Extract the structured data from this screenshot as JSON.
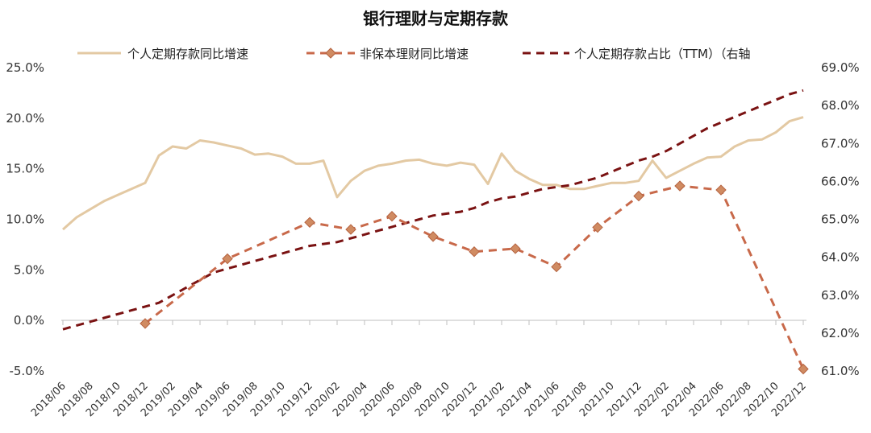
{
  "chart_data": {
    "type": "line",
    "title": "银行理财与定期存款",
    "x_ticks": [
      "2018/06",
      "2018/08",
      "2018/10",
      "2018/12",
      "2019/02",
      "2019/04",
      "2019/06",
      "2019/08",
      "2019/10",
      "2019/12",
      "2020/02",
      "2020/04",
      "2020/06",
      "2020/08",
      "2020/10",
      "2020/12",
      "2021/02",
      "2021/04",
      "2021/06",
      "2021/08",
      "2021/10",
      "2021/12",
      "2022/02",
      "2022/04",
      "2022/06",
      "2022/08",
      "2022/10",
      "2022/12"
    ],
    "y_left": {
      "range": [
        -5,
        25
      ],
      "ticks": [
        "-5.0%",
        "0.0%",
        "5.0%",
        "10.0%",
        "15.0%",
        "20.0%",
        "25.0%"
      ]
    },
    "y_right": {
      "range": [
        61,
        69
      ],
      "ticks": [
        "61.0%",
        "62.0%",
        "63.0%",
        "64.0%",
        "65.0%",
        "66.0%",
        "67.0%",
        "68.0%",
        "69.0%"
      ]
    },
    "grid": false,
    "legend_position": "top",
    "series": [
      {
        "name": "个人定期存款同比增速",
        "axis": "left",
        "style": "solid",
        "color": "#e3c9a3",
        "x": [
          "2018/06",
          "2018/07",
          "2018/08",
          "2018/09",
          "2018/10",
          "2018/11",
          "2018/12",
          "2019/01",
          "2019/02",
          "2019/03",
          "2019/04",
          "2019/05",
          "2019/06",
          "2019/07",
          "2019/08",
          "2019/09",
          "2019/10",
          "2019/11",
          "2019/12",
          "2020/01",
          "2020/02",
          "2020/03",
          "2020/04",
          "2020/05",
          "2020/06",
          "2020/07",
          "2020/08",
          "2020/09",
          "2020/10",
          "2020/11",
          "2020/12",
          "2021/01",
          "2021/02",
          "2021/03",
          "2021/04",
          "2021/05",
          "2021/06",
          "2021/07",
          "2021/08",
          "2021/09",
          "2021/10",
          "2021/11",
          "2021/12",
          "2022/01",
          "2022/02",
          "2022/03",
          "2022/04",
          "2022/05",
          "2022/06",
          "2022/07",
          "2022/08",
          "2022/09",
          "2022/10",
          "2022/11",
          "2022/12"
        ],
        "values": [
          9.0,
          10.2,
          11.0,
          11.8,
          12.4,
          13.0,
          13.6,
          16.3,
          17.2,
          17.0,
          17.8,
          17.6,
          17.3,
          17.0,
          16.4,
          16.5,
          16.2,
          15.5,
          15.5,
          15.8,
          12.2,
          13.8,
          14.8,
          15.3,
          15.5,
          15.8,
          15.9,
          15.5,
          15.3,
          15.6,
          15.4,
          13.5,
          16.5,
          14.8,
          14.0,
          13.4,
          13.4,
          13.0,
          13.0,
          13.3,
          13.6,
          13.6,
          13.8,
          15.8,
          14.1,
          14.8,
          15.5,
          16.1,
          16.2,
          17.2,
          17.8,
          17.9,
          18.6,
          19.7,
          20.1
        ]
      },
      {
        "name": "非保本理财同比增速",
        "axis": "left",
        "style": "dashed-marker",
        "color": "#c8694a",
        "marker_color": "#d08b62",
        "x": [
          "2018/12",
          "2019/06",
          "2019/12",
          "2020/03",
          "2020/06",
          "2020/09",
          "2020/12",
          "2021/03",
          "2021/06",
          "2021/09",
          "2021/12",
          "2022/03",
          "2022/06",
          "2022/12"
        ],
        "values": [
          -0.3,
          6.1,
          9.7,
          9.0,
          10.3,
          8.3,
          6.8,
          7.1,
          5.3,
          9.2,
          12.3,
          13.3,
          12.9,
          -4.8
        ]
      },
      {
        "name": "个人定期存款占比（TTM）（右轴",
        "axis": "right",
        "style": "dashed",
        "color": "#7a1212",
        "x": [
          "2018/06",
          "2018/07",
          "2018/08",
          "2018/09",
          "2018/10",
          "2018/11",
          "2018/12",
          "2019/01",
          "2019/02",
          "2019/03",
          "2019/04",
          "2019/05",
          "2019/06",
          "2019/07",
          "2019/08",
          "2019/09",
          "2019/10",
          "2019/11",
          "2019/12",
          "2020/01",
          "2020/02",
          "2020/03",
          "2020/04",
          "2020/05",
          "2020/06",
          "2020/07",
          "2020/08",
          "2020/09",
          "2020/10",
          "2020/11",
          "2020/12",
          "2021/01",
          "2021/02",
          "2021/03",
          "2021/04",
          "2021/05",
          "2021/06",
          "2021/07",
          "2021/08",
          "2021/09",
          "2021/10",
          "2021/11",
          "2021/12",
          "2022/01",
          "2022/02",
          "2022/03",
          "2022/04",
          "2022/05",
          "2022/06",
          "2022/07",
          "2022/08",
          "2022/09",
          "2022/10",
          "2022/11",
          "2022/12"
        ],
        "values": [
          62.1,
          62.2,
          62.3,
          62.4,
          62.5,
          62.6,
          62.7,
          62.8,
          63.0,
          63.2,
          63.4,
          63.6,
          63.7,
          63.8,
          63.9,
          64.0,
          64.1,
          64.2,
          64.3,
          64.35,
          64.4,
          64.5,
          64.6,
          64.7,
          64.8,
          64.9,
          65.0,
          65.1,
          65.15,
          65.2,
          65.3,
          65.45,
          65.55,
          65.6,
          65.7,
          65.8,
          65.85,
          65.9,
          66.0,
          66.1,
          66.25,
          66.4,
          66.55,
          66.65,
          66.8,
          67.0,
          67.2,
          67.4,
          67.55,
          67.7,
          67.85,
          68.0,
          68.15,
          68.3,
          68.4
        ]
      }
    ]
  }
}
